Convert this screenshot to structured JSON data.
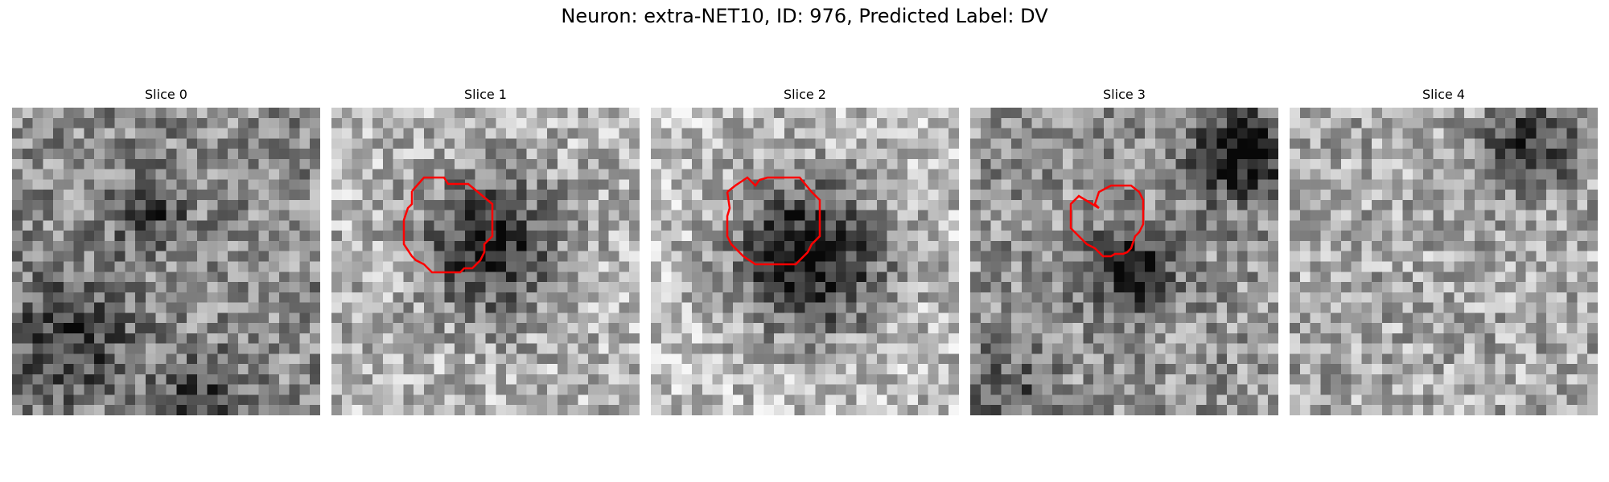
{
  "figure": {
    "title": "Neuron: extra-NET10, ID: 976, Predicted Label: DV"
  },
  "slices": [
    {
      "title": "Slice 0",
      "has_contour": false,
      "blob_strength": 0.0
    },
    {
      "title": "Slice 1",
      "has_contour": true,
      "blob_strength": 0.55
    },
    {
      "title": "Slice 2",
      "has_contour": true,
      "blob_strength": 0.7
    },
    {
      "title": "Slice 3",
      "has_contour": true,
      "blob_strength": 0.45
    },
    {
      "title": "Slice 4",
      "has_contour": false,
      "blob_strength": 0.0
    }
  ],
  "colors": {
    "contour": "#ff0000",
    "background": "#ffffff"
  }
}
